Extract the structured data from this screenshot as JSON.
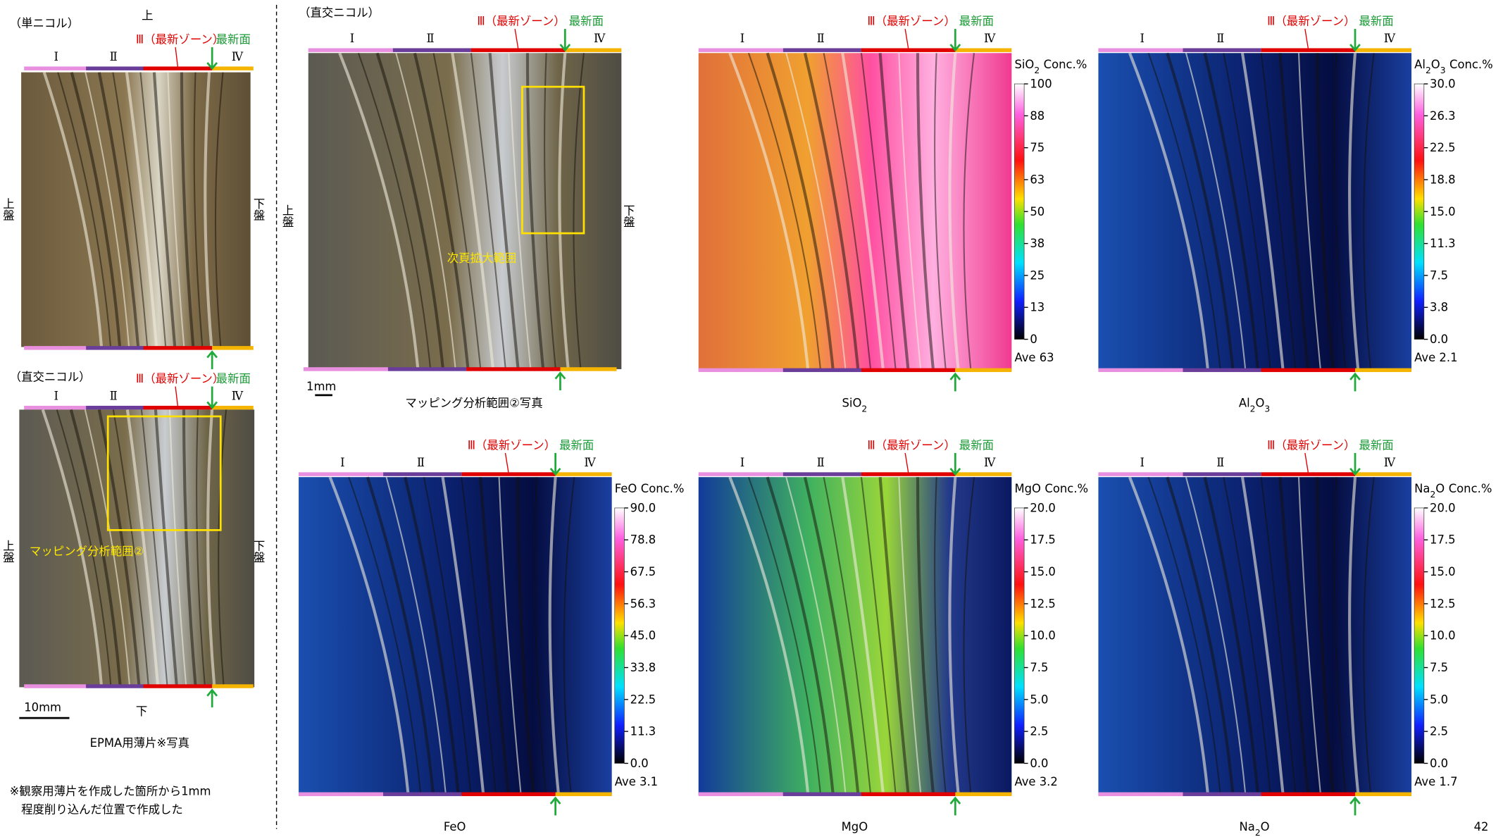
{
  "page_number": "42",
  "zone_labels": {
    "z1": "Ⅰ",
    "z2": "Ⅱ",
    "z3": "Ⅲ（最新ゾーン）",
    "newest_plane": "最新面",
    "z4": "Ⅳ"
  },
  "sides": {
    "top": "上",
    "bottom": "下",
    "hanging": "上盤",
    "foot": "下盤"
  },
  "thin_section": {
    "single_nicol_label": "（単ニコル）",
    "cross_nicol_label": "（直交ニコル）",
    "mapping_area": "マッピング分析範囲②",
    "scale": "10mm",
    "caption": "EPMA用薄片※写真",
    "note": [
      "※観察用薄片を作成した箇所から1mm",
      "程度削り込んだ位置で作成した"
    ]
  },
  "photo": {
    "cross_nicol_label": "（直交ニコル）",
    "enlarged_area": "次頁拡大範囲",
    "scale": "1mm",
    "caption": "マッピング分析範囲②写真"
  },
  "maps": [
    {
      "oxide": "SiO",
      "sub": "2",
      "unit": "Conc.%",
      "ticks": [
        "100",
        "88",
        "75",
        "63",
        "50",
        "38",
        "25",
        "13",
        "0"
      ],
      "average": "Ave 63"
    },
    {
      "oxide": "Al",
      "sub": "2",
      "oxide2": "O",
      "sub2": "3",
      "unit": "Conc.%",
      "ticks": [
        "30.0",
        "26.3",
        "22.5",
        "18.8",
        "15.0",
        "11.3",
        "7.5",
        "3.8",
        "0.0"
      ],
      "average": "Ave 2.1"
    },
    {
      "oxide": "FeO",
      "unit": "Conc.%",
      "ticks": [
        "90.0",
        "78.8",
        "67.5",
        "56.3",
        "45.0",
        "33.8",
        "22.5",
        "11.3",
        "0.0"
      ],
      "average": "Ave 3.1"
    },
    {
      "oxide": "MgO",
      "unit": "Conc.%",
      "ticks": [
        "20.0",
        "17.5",
        "15.0",
        "12.5",
        "10.0",
        "7.5",
        "5.0",
        "2.5",
        "0.0"
      ],
      "average": "Ave 3.2"
    },
    {
      "oxide": "Na",
      "sub": "2",
      "oxide2": "O",
      "unit": "Conc.%",
      "ticks": [
        "20.0",
        "17.5",
        "15.0",
        "12.5",
        "10.0",
        "7.5",
        "5.0",
        "2.5",
        "0.0"
      ],
      "average": "Ave 1.7"
    }
  ]
}
